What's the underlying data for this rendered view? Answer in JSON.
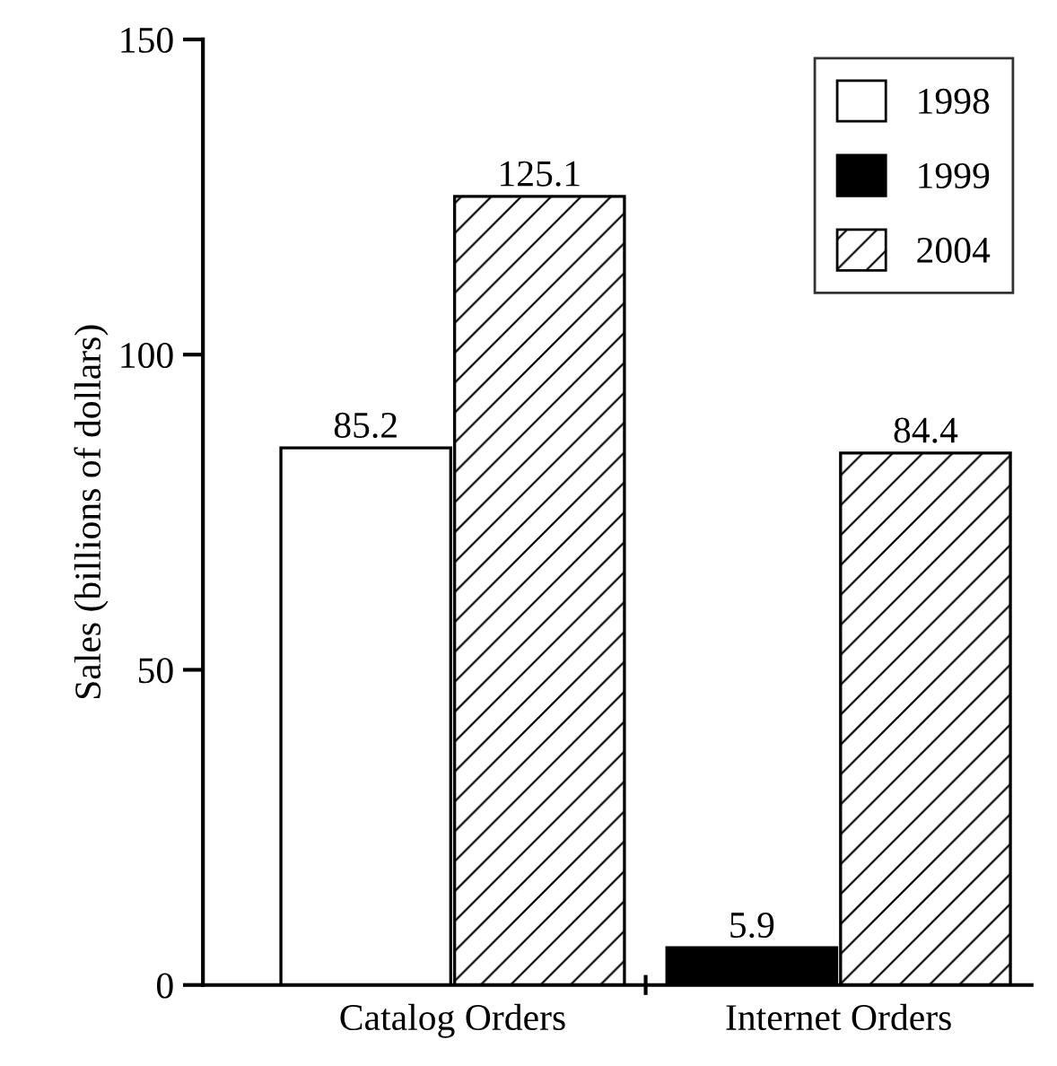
{
  "chart_data": {
    "type": "bar",
    "ylabel": "Sales (billions of dollars)",
    "categories": [
      "Catalog Orders",
      "Internet Orders"
    ],
    "series": [
      {
        "name": "1998",
        "color": "#ffffff",
        "values": [
          85.2,
          null
        ]
      },
      {
        "name": "1999",
        "color": "#000000",
        "values": [
          null,
          5.9
        ]
      },
      {
        "name": "2004",
        "color": "#000000",
        "values": [
          125.1,
          84.4
        ]
      }
    ],
    "ylim": [
      0,
      150
    ],
    "yticks": [
      0,
      50,
      100,
      150
    ],
    "data_labels": true,
    "legend": "top right",
    "grid": false
  }
}
